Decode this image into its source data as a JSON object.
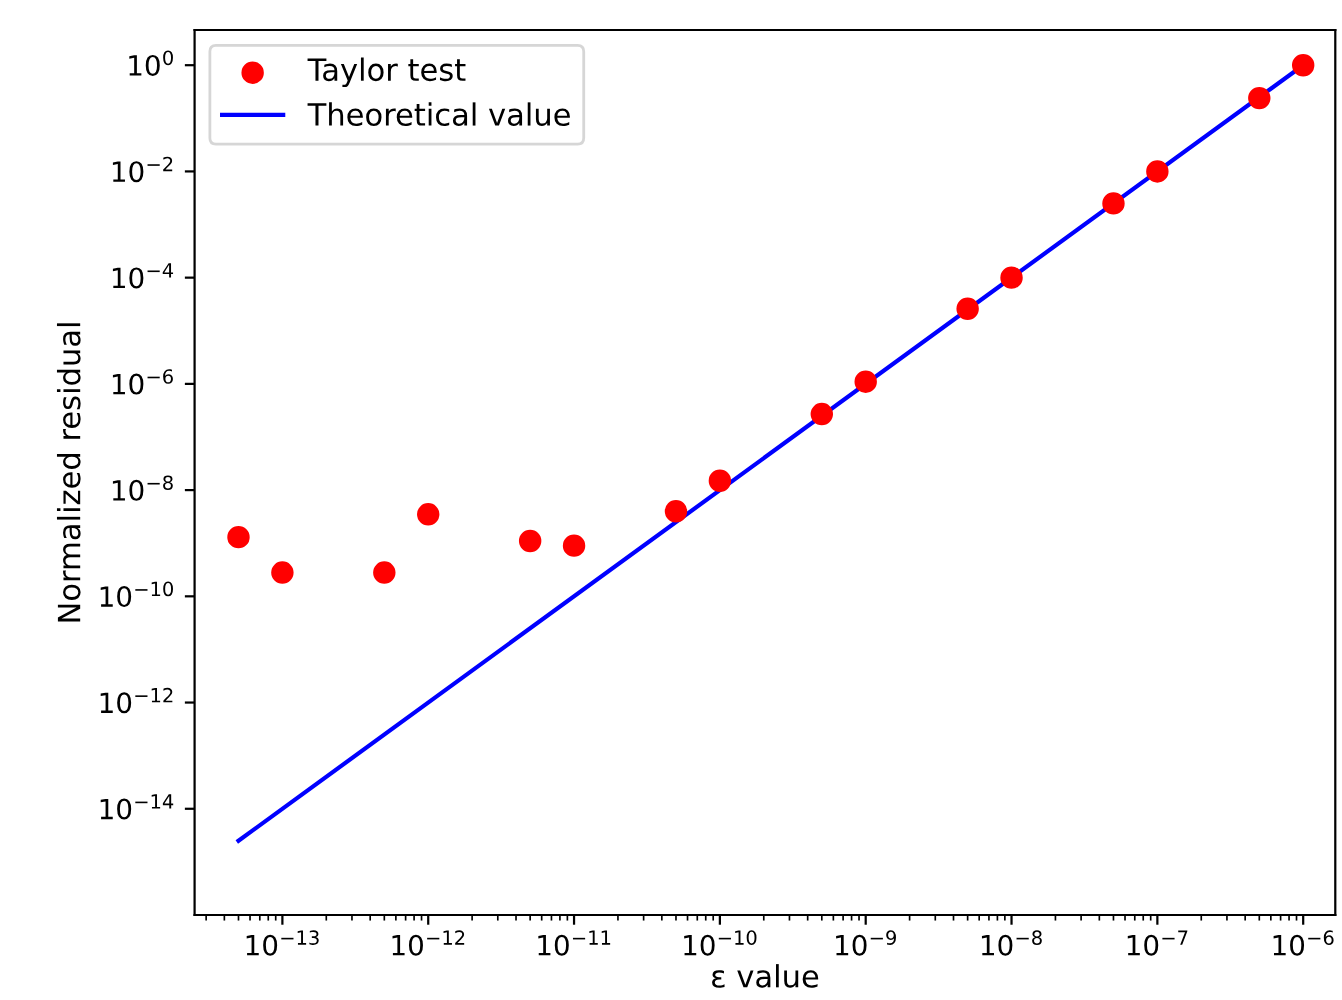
{
  "chart_data": {
    "type": "scatter",
    "xlabel": "ε value",
    "ylabel": "Normalized residual",
    "log": "xy",
    "legend": "top left",
    "grid": false,
    "xlim": [
      2.5e-14,
      1.66e-06
    ],
    "ylim": [
      1e-16,
      4.6
    ],
    "xticks": [
      {
        "value": 1e-13,
        "label": "10$^{−13}$"
      },
      {
        "value": 1e-12,
        "label": "10$^{−12}$"
      },
      {
        "value": 1e-11,
        "label": "10$^{−11}$"
      },
      {
        "value": 1e-10,
        "label": "10$^{−10}$"
      },
      {
        "value": 1e-09,
        "label": "10$^{−9}$"
      },
      {
        "value": 1e-08,
        "label": "10$^{−8}$"
      },
      {
        "value": 1e-07,
        "label": "10$^{−7}$"
      },
      {
        "value": 1e-06,
        "label": "10$^{−6}$"
      }
    ],
    "yticks": [
      {
        "value": 1e-14,
        "label": "10$^{−14}$"
      },
      {
        "value": 1e-12,
        "label": "10$^{−12}$"
      },
      {
        "value": 1e-10,
        "label": "10$^{−10}$"
      },
      {
        "value": 1e-08,
        "label": "10$^{−8}$"
      },
      {
        "value": 1e-06,
        "label": "10$^{−6}$"
      },
      {
        "value": 0.0001,
        "label": "10$^{−4}$"
      },
      {
        "value": 0.01,
        "label": "10$^{−2}$"
      },
      {
        "value": 1,
        "label": "10$^{0}$"
      }
    ],
    "series": [
      {
        "name": "Taylor test",
        "marker": "circle",
        "color": "#ff0000",
        "x": [
          5e-14,
          1e-13,
          5e-13,
          1e-12,
          5e-12,
          1e-11,
          5e-11,
          1e-10,
          5e-10,
          1e-09,
          5e-09,
          1e-08,
          5e-08,
          1e-07,
          5e-07,
          1e-06
        ],
        "values": [
          1.3e-09,
          2.8e-10,
          2.8e-10,
          3.5e-09,
          1.1e-09,
          9e-10,
          4e-09,
          1.5e-08,
          2.7e-07,
          1.1e-06,
          2.6e-05,
          0.0001,
          0.0025,
          0.01,
          0.24,
          1
        ]
      },
      {
        "name": "Theoretical value",
        "type": "line",
        "marker": "none",
        "line_style": "solid",
        "color": "#0000ff",
        "x": [
          5e-14,
          1e-06
        ],
        "values": [
          2.5e-15,
          1
        ]
      }
    ]
  }
}
